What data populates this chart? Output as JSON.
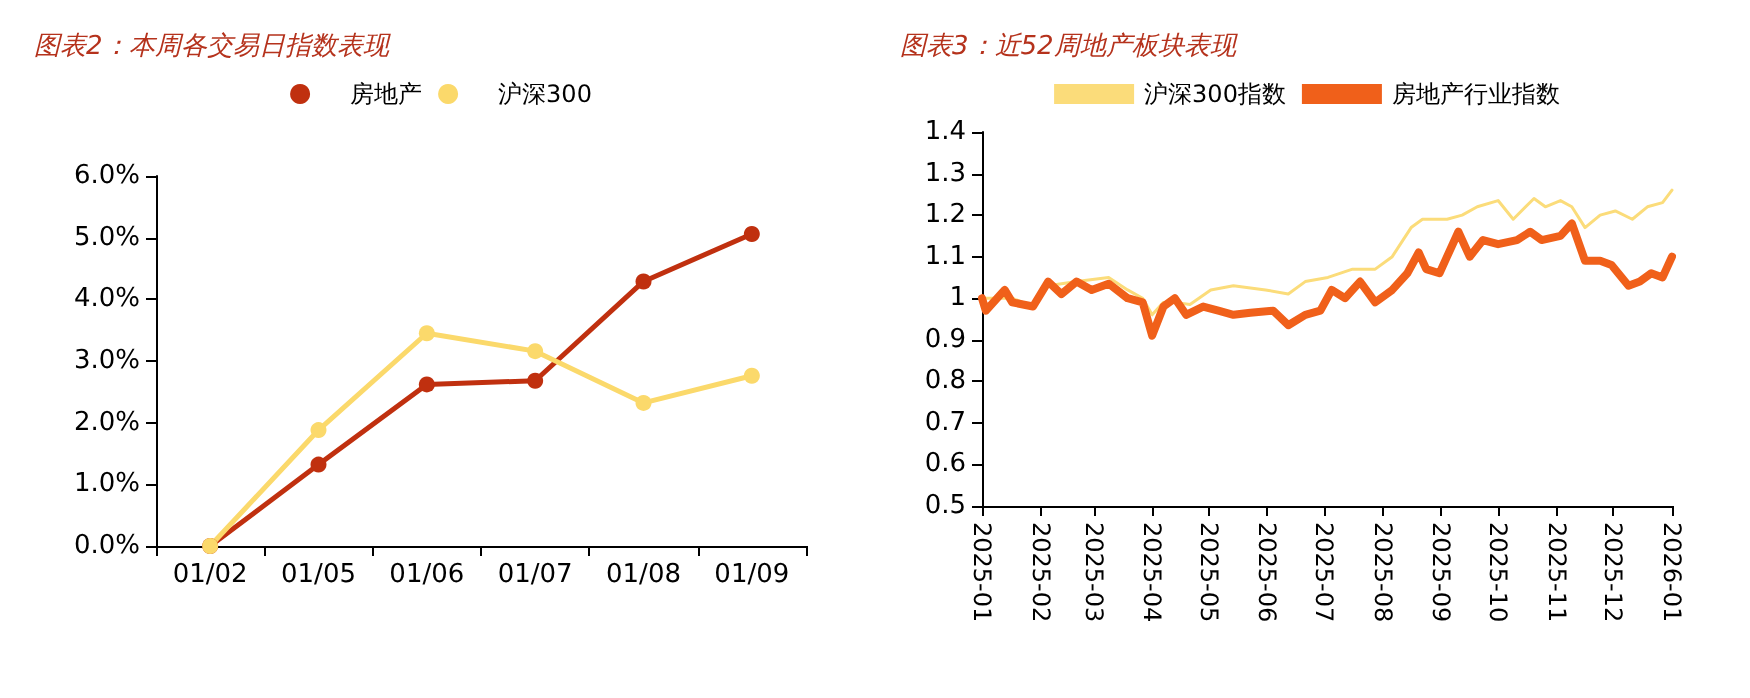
{
  "chart_data": [
    {
      "type": "line",
      "title": "图表2：本周各交易日指数表现",
      "categories": [
        "01/02",
        "01/05",
        "01/06",
        "01/07",
        "01/08",
        "01/09"
      ],
      "series": [
        {
          "name": "房地产",
          "color": "#c0300f",
          "values": [
            0,
            1.32,
            2.62,
            2.68,
            4.29,
            5.06
          ]
        },
        {
          "name": "沪深300",
          "color": "#fbd96b",
          "values": [
            0,
            1.88,
            3.45,
            3.16,
            2.32,
            2.76
          ]
        }
      ],
      "ylim": [
        0,
        6
      ],
      "yticks": [
        {
          "value": 0,
          "label": "0.0%"
        },
        {
          "value": 1,
          "label": "1.0%"
        },
        {
          "value": 2,
          "label": "2.0%"
        },
        {
          "value": 3,
          "label": "3.0%"
        },
        {
          "value": 4,
          "label": "4.0%"
        },
        {
          "value": 5,
          "label": "5.0%"
        },
        {
          "value": 6,
          "label": "6.0%"
        }
      ],
      "grid": false,
      "legend": "top",
      "marker": "circle",
      "line_style": "solid"
    },
    {
      "type": "line",
      "title": "图表3：近52周地产板块表现",
      "series": [
        {
          "name": "沪深300指数",
          "color": "#fbdc7a",
          "x": [
            "2025-01-01",
            "2025-01-17",
            "2025-01-28",
            "2025-02-05",
            "2025-02-20",
            "2025-03-09",
            "2025-03-19",
            "2025-03-27",
            "2025-04-01",
            "2025-04-07",
            "2025-04-13",
            "2025-04-21",
            "2025-05-02",
            "2025-05-14",
            "2025-05-31",
            "2025-06-12",
            "2025-06-21",
            "2025-07-03",
            "2025-07-16",
            "2025-07-28",
            "2025-08-06",
            "2025-08-16",
            "2025-08-22",
            "2025-09-04",
            "2025-09-12",
            "2025-09-20",
            "2025-10-01",
            "2025-10-09",
            "2025-10-20",
            "2025-10-26",
            "2025-11-03",
            "2025-11-09",
            "2025-11-16",
            "2025-11-24",
            "2025-12-02",
            "2025-12-11",
            "2025-12-19",
            "2025-12-27",
            "2026-01-01"
          ],
          "values": [
            1.0,
            1.0,
            0.98,
            1.03,
            1.04,
            1.05,
            1.02,
            1.0,
            0.96,
            0.99,
            0.99,
            0.985,
            1.02,
            1.03,
            1.02,
            1.01,
            1.04,
            1.05,
            1.07,
            1.07,
            1.1,
            1.17,
            1.19,
            1.19,
            1.2,
            1.22,
            1.235,
            1.19,
            1.24,
            1.22,
            1.235,
            1.22,
            1.17,
            1.2,
            1.21,
            1.19,
            1.22,
            1.23,
            1.26
          ]
        },
        {
          "name": "房地产行业指数",
          "color": "#f0601a",
          "x": [
            "2025-01-01",
            "2025-01-03",
            "2025-01-13",
            "2025-01-17",
            "2025-01-28",
            "2025-02-05",
            "2025-02-12",
            "2025-02-20",
            "2025-02-28",
            "2025-03-09",
            "2025-03-19",
            "2025-03-27",
            "2025-04-01",
            "2025-04-07",
            "2025-04-13",
            "2025-04-19",
            "2025-04-28",
            "2025-05-06",
            "2025-05-14",
            "2025-05-23",
            "2025-06-04",
            "2025-06-12",
            "2025-06-21",
            "2025-06-29",
            "2025-07-05",
            "2025-07-12",
            "2025-07-20",
            "2025-07-28",
            "2025-08-06",
            "2025-08-14",
            "2025-08-20",
            "2025-08-24",
            "2025-08-31",
            "2025-09-04",
            "2025-09-10",
            "2025-09-16",
            "2025-09-23",
            "2025-10-01",
            "2025-10-11",
            "2025-10-18",
            "2025-10-24",
            "2025-11-03",
            "2025-11-09",
            "2025-11-16",
            "2025-11-24",
            "2025-11-30",
            "2025-12-09",
            "2025-12-15",
            "2025-12-21",
            "2025-12-27",
            "2026-01-01"
          ],
          "values": [
            1.0,
            0.97,
            1.02,
            0.99,
            0.98,
            1.04,
            1.01,
            1.04,
            1.02,
            1.035,
            1.0,
            0.99,
            0.91,
            0.98,
            1.0,
            0.96,
            0.98,
            0.97,
            0.96,
            0.965,
            0.97,
            0.935,
            0.96,
            0.97,
            1.02,
            1.0,
            1.04,
            0.99,
            1.02,
            1.06,
            1.11,
            1.07,
            1.06,
            1.1,
            1.16,
            1.1,
            1.14,
            1.13,
            1.14,
            1.16,
            1.14,
            1.15,
            1.18,
            1.09,
            1.09,
            1.08,
            1.03,
            1.04,
            1.06,
            1.05,
            1.1
          ]
        }
      ],
      "xlim": [
        "2025-01",
        "2026-01"
      ],
      "xticks": [
        "2025-01",
        "2025-02",
        "2025-03",
        "2025-04",
        "2025-05",
        "2025-06",
        "2025-07",
        "2025-08",
        "2025-09",
        "2025-10",
        "2025-11",
        "2025-12",
        "2026-01"
      ],
      "ylim": [
        0.5,
        1.4
      ],
      "yticks": [
        0.5,
        0.6,
        0.7,
        0.8,
        0.9,
        1,
        1.1,
        1.2,
        1.3,
        1.4
      ],
      "grid": false,
      "legend": "top",
      "marker": "none",
      "line_style": "solid"
    }
  ]
}
